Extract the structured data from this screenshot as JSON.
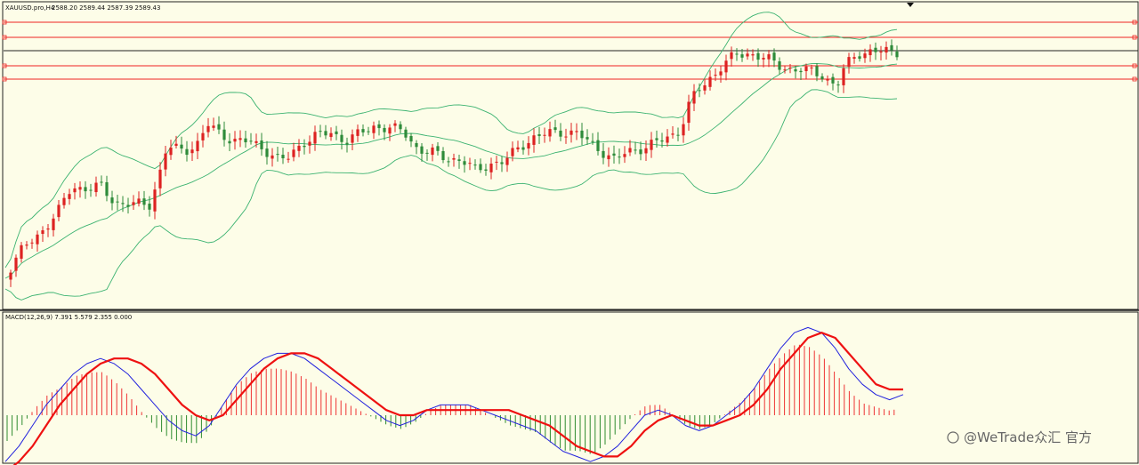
{
  "main_pane": {
    "symbol_label": "XAUUSD.pro,H4",
    "ohlc_label": "2588.20 2589.44 2587.39 2589.43"
  },
  "macd_pane": {
    "indicator_label": "MACD(12,26,9) 7.391 5.579 2.355 0.000"
  },
  "watermark": "@WeTrade众汇 官方",
  "colors": {
    "background": "#fdfde8",
    "bull_candle": "#dd2222",
    "bear_candle": "#2e8b3a",
    "bollinger": "#3cb371",
    "hline": "#ee2222",
    "macd_line": "#2222dd",
    "signal_line": "#ee1111",
    "hist_pos": "#ee3333",
    "hist_neg": "#2e8b2e"
  },
  "chart_data": [
    {
      "type": "candlestick",
      "symbol": "XAUUSD.pro",
      "timeframe": "H4",
      "last_bar": {
        "open": 2588.2,
        "high": 2589.44,
        "low": 2587.39,
        "close": 2589.43
      },
      "overlays": [
        "Bollinger Bands"
      ],
      "horizontal_levels": 5,
      "grid": false
    },
    {
      "type": "line",
      "indicator": "MACD",
      "params": [
        12,
        26,
        9
      ],
      "values": {
        "macd": 7.391,
        "signal": 5.579,
        "histogram": 2.355,
        "level": 0.0
      },
      "series": [
        {
          "name": "macd",
          "values": [
            -18,
            -12,
            -4,
            4,
            10,
            16,
            20,
            22,
            20,
            16,
            10,
            4,
            -2,
            -6,
            -8,
            -4,
            4,
            12,
            18,
            22,
            24,
            24,
            22,
            18,
            14,
            10,
            6,
            2,
            -2,
            -4,
            -2,
            2,
            4,
            4,
            4,
            2,
            0,
            -2,
            -4,
            -6,
            -10,
            -14,
            -16,
            -18,
            -16,
            -12,
            -6,
            0,
            2,
            0,
            -4,
            -6,
            -4,
            0,
            4,
            10,
            18,
            26,
            32,
            34,
            32,
            26,
            18,
            12,
            8,
            6,
            8
          ]
        },
        {
          "name": "signal",
          "values": [
            -22,
            -18,
            -12,
            -4,
            4,
            10,
            16,
            20,
            22,
            22,
            20,
            16,
            10,
            4,
            0,
            -2,
            0,
            6,
            12,
            18,
            22,
            24,
            24,
            22,
            18,
            14,
            10,
            6,
            2,
            0,
            0,
            2,
            2,
            2,
            2,
            2,
            2,
            2,
            0,
            -2,
            -4,
            -8,
            -12,
            -14,
            -16,
            -16,
            -12,
            -6,
            -2,
            0,
            -2,
            -4,
            -4,
            -2,
            0,
            4,
            10,
            18,
            24,
            30,
            32,
            30,
            24,
            18,
            12,
            10,
            10
          ]
        }
      ]
    }
  ]
}
